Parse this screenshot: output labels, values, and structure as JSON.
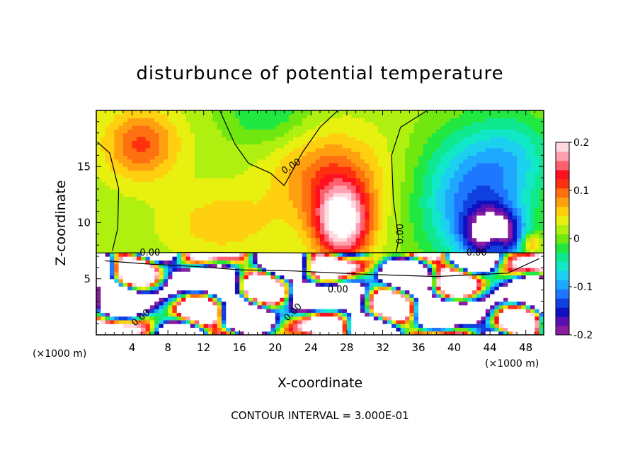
{
  "chart_data": {
    "type": "heatmap",
    "title": "disturbunce of potential temperature",
    "xlabel": "X-coordinate",
    "ylabel": "Z-coordinate",
    "x_unit": "(×1000 m)",
    "y_unit": "(×1000 m)",
    "xlim": [
      0,
      50
    ],
    "ylim": [
      0,
      20
    ],
    "x_ticks": [
      4,
      8,
      12,
      16,
      20,
      24,
      28,
      32,
      36,
      40,
      44,
      48
    ],
    "y_ticks": [
      5,
      10,
      15
    ],
    "colorbar": {
      "range": [
        -0.2,
        0.2
      ],
      "ticks": [
        {
          "value": 0.2,
          "label": "0.2"
        },
        {
          "value": 0.1,
          "label": "0.1"
        },
        {
          "value": 0,
          "label": "0"
        },
        {
          "value": -0.1,
          "label": "-0.1"
        },
        {
          "value": -0.2,
          "label": "-0.2"
        }
      ],
      "colors": [
        "#8a1ea0",
        "#5a10b0",
        "#1010c0",
        "#1040e0",
        "#1e78ff",
        "#1ea8ff",
        "#1ed0f0",
        "#10e8c8",
        "#10e890",
        "#20e840",
        "#70e810",
        "#b0f010",
        "#e8f010",
        "#ffd010",
        "#ffa010",
        "#ff7010",
        "#ff3010",
        "#ff1020",
        "#ff6070",
        "#ffa0b0",
        "#ffd8e0"
      ]
    },
    "contour_labels": [
      {
        "text": "0.00",
        "x": 21.8,
        "z": 15.0,
        "angle": -32
      },
      {
        "text": "0.00",
        "x": 34.0,
        "z": 9.0,
        "angle": -90
      },
      {
        "text": "0.00",
        "x": 6.0,
        "z": 7.3,
        "angle": 0
      },
      {
        "text": "0.00",
        "x": 42.5,
        "z": 7.3,
        "angle": 0
      },
      {
        "text": "0.00",
        "x": 27.0,
        "z": 4.0,
        "angle": 0
      },
      {
        "text": "0.00",
        "x": 22.0,
        "z": 2.0,
        "angle": -45
      },
      {
        "text": "0.00",
        "x": 5.0,
        "z": 1.5,
        "angle": -40
      }
    ],
    "footer": "CONTOUR INTERVAL = 3.000E-01"
  }
}
